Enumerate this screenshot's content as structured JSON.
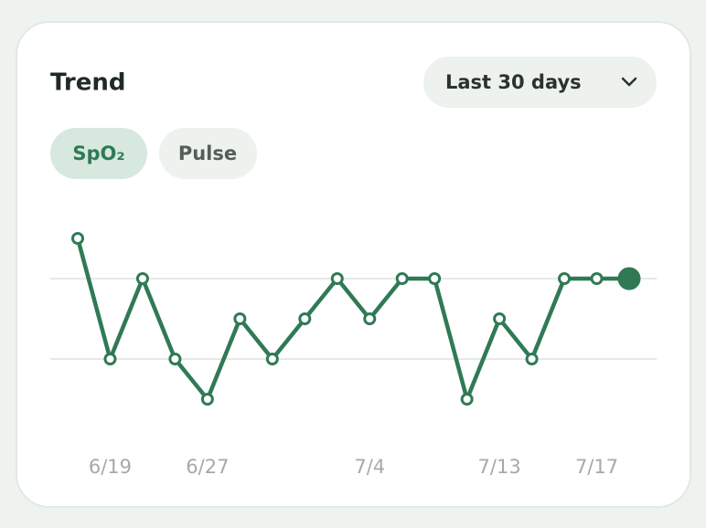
{
  "chart_data": {
    "type": "line",
    "title": "Trend",
    "range_selector": "Last 30 days",
    "tabs": [
      "SpO₂",
      "Pulse"
    ],
    "categories": [
      null,
      "6/19",
      null,
      null,
      "6/27",
      null,
      null,
      null,
      null,
      "7/4",
      null,
      null,
      null,
      "7/13",
      null,
      null,
      "7/17",
      null
    ],
    "values": [
      99,
      96,
      98,
      96,
      95,
      97,
      96,
      97,
      98,
      97,
      98,
      98,
      95,
      97,
      96,
      98,
      98,
      98
    ],
    "color": "#2f7a55",
    "ylim": [
      94,
      100
    ],
    "yticks": [
      96,
      98
    ],
    "grid": true
  }
}
